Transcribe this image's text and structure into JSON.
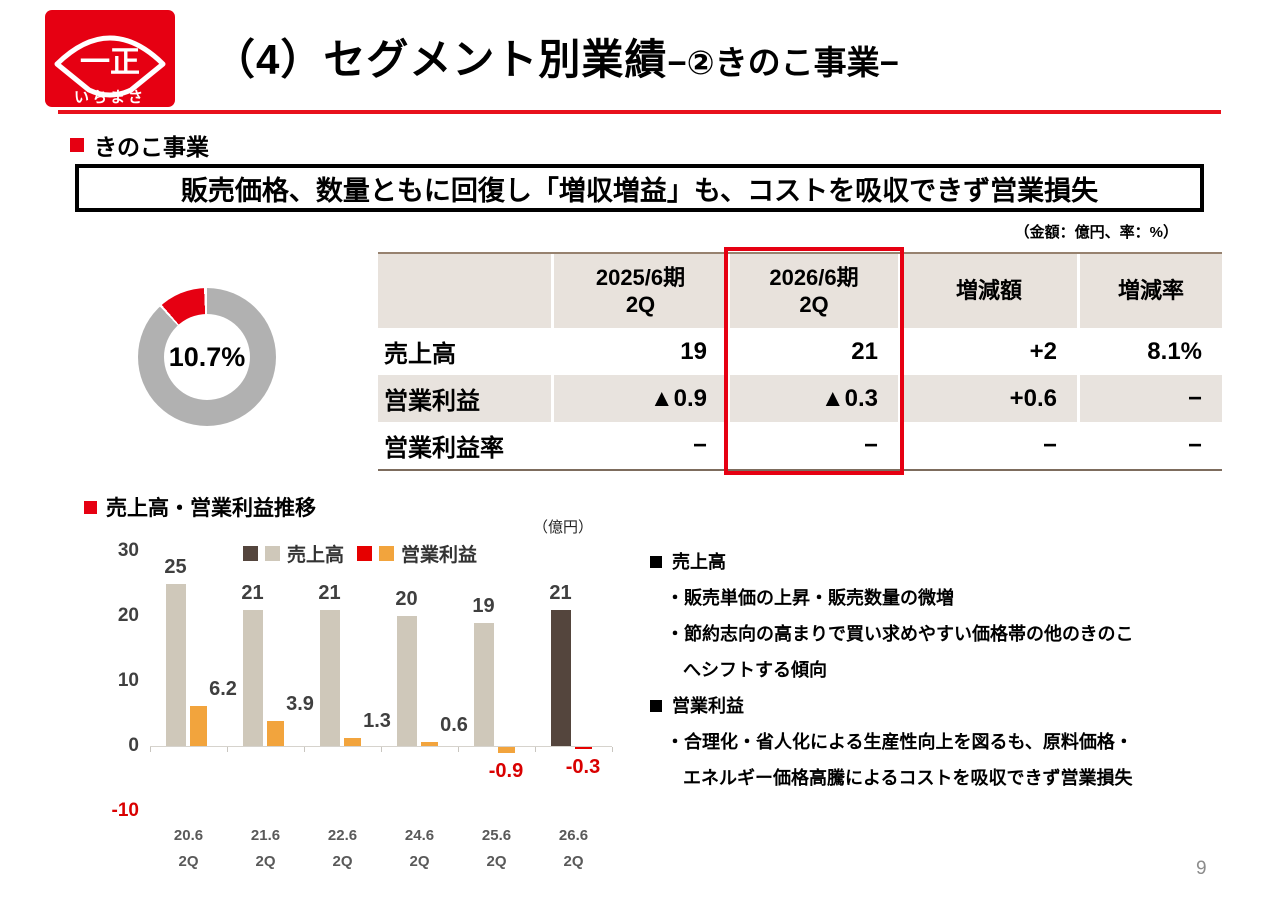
{
  "header": {
    "title_main": "（4）セグメント別業績",
    "title_sub": "−②きのこ事業−",
    "logo_mark": "一正",
    "logo_name": "いちまさ",
    "logo_bg_color": "#e60012"
  },
  "section": {
    "heading": "きのこ事業",
    "message": "販売価格、数量ともに回復し「増収増益」も、コストを吸収できず営業損失",
    "unit_note": "（金額：億円、率：%）"
  },
  "donut": {
    "label": "10.7%",
    "share_percent": 10.7,
    "ring_color": "#b1b1b1",
    "accent_color": "#e60012"
  },
  "table": {
    "columns": [
      "",
      "2025/6期\n2Q",
      "2026/6期\n2Q",
      "増減額",
      "増減率"
    ],
    "highlight_column_index": 2,
    "rows": [
      {
        "label": "売上高",
        "values": [
          "19",
          "21",
          "+2",
          "8.1%"
        ],
        "shaded": false
      },
      {
        "label": "営業利益",
        "values": [
          "▲0.9",
          "▲0.3",
          "+0.6",
          "−"
        ],
        "shaded": true
      },
      {
        "label": "営業利益率",
        "values": [
          "−",
          "−",
          "−",
          "−"
        ],
        "shaded": false
      }
    ]
  },
  "chart": {
    "heading": "売上高・営業利益推移",
    "unit": "（億円）"
  },
  "chart_data": {
    "type": "bar",
    "categories": [
      "20.6 2Q",
      "21.6 2Q",
      "22.6 2Q",
      "24.6 2Q",
      "25.6 2Q",
      "26.6 2Q"
    ],
    "series": [
      {
        "name": "売上高",
        "values": [
          25,
          21,
          21,
          20,
          19,
          21
        ],
        "color": "#cfc8ba",
        "highlight_color": "#54453d"
      },
      {
        "name": "営業利益",
        "values": [
          6.2,
          3.9,
          1.3,
          0.6,
          -0.9,
          -0.3
        ],
        "color": "#f2a43d",
        "highlight_color": "#e60000"
      }
    ],
    "highlight_index": 5,
    "y_ticks": [
      30,
      20,
      10,
      0,
      -10
    ],
    "ylim": [
      -10,
      30
    ],
    "negative_label_color": "#d90000",
    "legend_position": "top",
    "grid": false
  },
  "notes": {
    "lines": [
      {
        "type": "heading",
        "text": "売上高"
      },
      {
        "type": "bullet",
        "text": "・販売単価の上昇・販売数量の微増"
      },
      {
        "type": "bullet",
        "text": "・節約志向の高まりで買い求めやすい価格帯の他のきのこ"
      },
      {
        "type": "cont",
        "text": "へシフトする傾向"
      },
      {
        "type": "heading",
        "text": "営業利益"
      },
      {
        "type": "bullet",
        "text": "・合理化・省人化による生産性向上を図るも、原料価格・"
      },
      {
        "type": "cont",
        "text": "エネルギー価格高騰によるコストを吸収できず営業損失"
      }
    ]
  },
  "footer": {
    "page_number": "9"
  }
}
